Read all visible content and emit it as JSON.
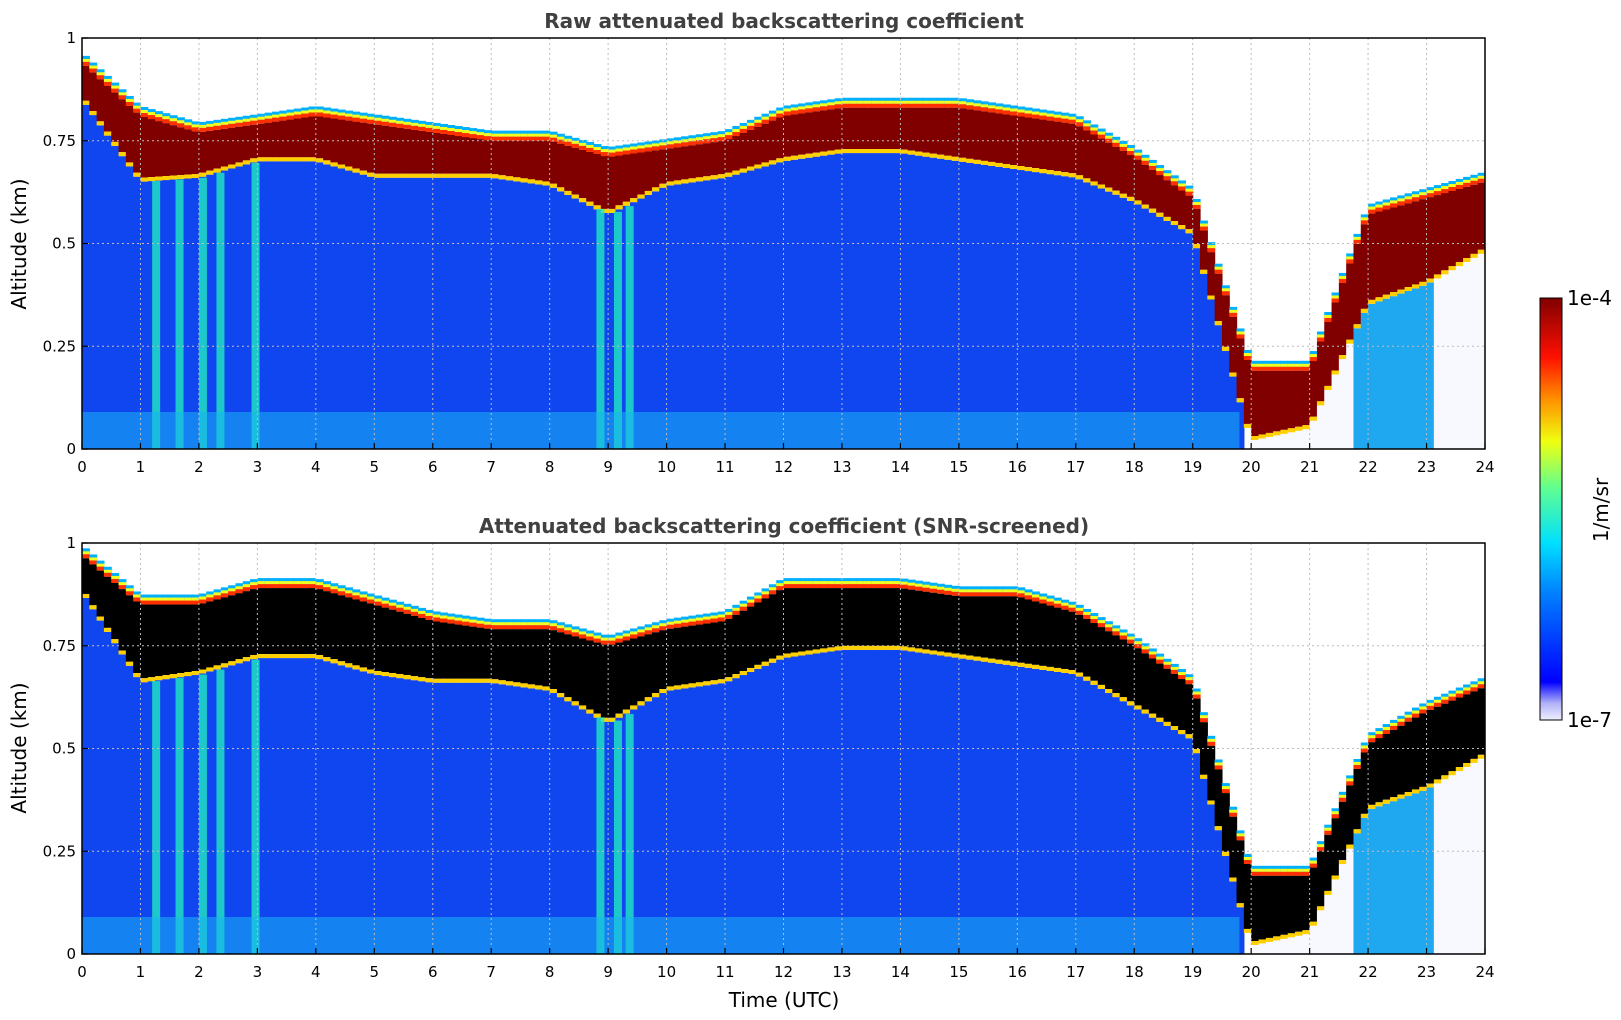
{
  "chart_data": [
    {
      "type": "heatmap",
      "title": "Raw attenuated backscattering coefficient",
      "xlabel": "",
      "ylabel": "Altitude (km)",
      "xlim": [
        0,
        24
      ],
      "ylim": [
        0,
        1
      ],
      "xticks": [
        "0",
        "1",
        "2",
        "3",
        "4",
        "5",
        "6",
        "7",
        "8",
        "9",
        "10",
        "11",
        "12",
        "13",
        "14",
        "15",
        "16",
        "17",
        "18",
        "19",
        "20",
        "21",
        "22",
        "23",
        "24"
      ],
      "yticks": [
        "0",
        "0.25",
        "0.5",
        "0.75",
        "1"
      ],
      "grid": true,
      "colormap": "jet",
      "cloud_top_km": [
        0.95,
        0.82,
        0.78,
        0.8,
        0.82,
        0.8,
        0.78,
        0.76,
        0.76,
        0.72,
        0.74,
        0.76,
        0.82,
        0.84,
        0.84,
        0.84,
        0.82,
        0.8,
        0.72,
        0.62,
        0.2,
        0.2,
        0.58,
        0.62,
        0.66
      ],
      "cloud_base_km": [
        0.85,
        0.65,
        0.66,
        0.7,
        0.7,
        0.66,
        0.66,
        0.66,
        0.64,
        0.57,
        0.64,
        0.66,
        0.7,
        0.72,
        0.72,
        0.7,
        0.68,
        0.66,
        0.6,
        0.52,
        0.02,
        0.05,
        0.35,
        0.4,
        0.48
      ]
    },
    {
      "type": "heatmap",
      "title": "Attenuated backscattering coefficient (SNR-screened)",
      "xlabel": "Time (UTC)",
      "ylabel": "Altitude (km)",
      "xlim": [
        0,
        24
      ],
      "ylim": [
        0,
        1
      ],
      "xticks": [
        "0",
        "1",
        "2",
        "3",
        "4",
        "5",
        "6",
        "7",
        "8",
        "9",
        "10",
        "11",
        "12",
        "13",
        "14",
        "15",
        "16",
        "17",
        "18",
        "19",
        "20",
        "21",
        "22",
        "23",
        "24"
      ],
      "yticks": [
        "0",
        "0.25",
        "0.5",
        "0.75",
        "1"
      ],
      "grid": true,
      "colormap": "jet",
      "cloud_top_km": [
        0.98,
        0.86,
        0.86,
        0.9,
        0.9,
        0.86,
        0.82,
        0.8,
        0.8,
        0.76,
        0.8,
        0.82,
        0.9,
        0.9,
        0.9,
        0.88,
        0.88,
        0.84,
        0.76,
        0.66,
        0.2,
        0.2,
        0.52,
        0.6,
        0.66
      ],
      "cloud_base_km": [
        0.88,
        0.66,
        0.68,
        0.72,
        0.72,
        0.68,
        0.66,
        0.66,
        0.64,
        0.56,
        0.64,
        0.66,
        0.72,
        0.74,
        0.74,
        0.72,
        0.7,
        0.68,
        0.6,
        0.52,
        0.02,
        0.05,
        0.35,
        0.4,
        0.48
      ]
    }
  ],
  "colorbar": {
    "label": "1/m/sr",
    "max_label": "1e-4",
    "min_label": "1e-7",
    "scale": "log"
  },
  "colors": {
    "background_signal": "#1046f0",
    "cloud_core_raw": "#800000",
    "cloud_core_screened": "#000000",
    "title_text": "#404040"
  }
}
